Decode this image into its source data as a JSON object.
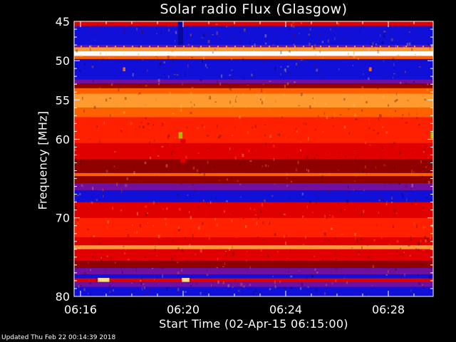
{
  "window": {
    "footer": "Updated Thu Feb 22 00:14:39 2018"
  },
  "chart_data": {
    "type": "heatmap",
    "title": "Solar radio Flux (Glasgow)",
    "xlabel": "Start Time (02-Apr-15 06:15:00)",
    "ylabel": "Frequency [MHz]",
    "x_unit": "minutes since 06:15:00",
    "xlim": [
      0.75,
      14.75
    ],
    "ylim": [
      80,
      45
    ],
    "x_ticks": [
      {
        "value": 1,
        "label": "06:16"
      },
      {
        "value": 5,
        "label": "06:20"
      },
      {
        "value": 9,
        "label": "06:24"
      },
      {
        "value": 13,
        "label": "06:28"
      }
    ],
    "y_ticks": [
      {
        "value": 45,
        "label": "45"
      },
      {
        "value": 50,
        "label": "50"
      },
      {
        "value": 55,
        "label": "55"
      },
      {
        "value": 60,
        "label": "60"
      },
      {
        "value": 70,
        "label": "70"
      },
      {
        "value": 80,
        "label": "80"
      }
    ],
    "colors": {
      "blue": "#1010d8",
      "deep_blue": "#0808a0",
      "purple": "#7010a0",
      "dark_red": "#900000",
      "red": "#e00000",
      "bright_red": "#ff2000",
      "orange": "#ff6000",
      "light_orange": "#ff9a30",
      "yellow": "#ffe080",
      "white": "#ffffff",
      "green": "#a0c000"
    },
    "bands": [
      {
        "f0": 44.6,
        "f1": 45.0,
        "color": "deep_blue"
      },
      {
        "f0": 45.0,
        "f1": 45.6,
        "color": "red"
      },
      {
        "f0": 45.6,
        "f1": 48.0,
        "color": "blue"
      },
      {
        "f0": 48.0,
        "f1": 48.3,
        "color": "purple"
      },
      {
        "f0": 48.3,
        "f1": 48.8,
        "color": "light_orange"
      },
      {
        "f0": 48.8,
        "f1": 49.4,
        "color": "white"
      },
      {
        "f0": 49.4,
        "f1": 49.8,
        "color": "orange"
      },
      {
        "f0": 49.8,
        "f1": 52.4,
        "color": "blue"
      },
      {
        "f0": 52.4,
        "f1": 52.9,
        "color": "purple"
      },
      {
        "f0": 52.9,
        "f1": 53.5,
        "color": "dark_red"
      },
      {
        "f0": 53.5,
        "f1": 54.2,
        "color": "orange"
      },
      {
        "f0": 54.2,
        "f1": 56.0,
        "color": "light_orange"
      },
      {
        "f0": 56.0,
        "f1": 57.2,
        "color": "orange"
      },
      {
        "f0": 57.2,
        "f1": 60.5,
        "color": "bright_red"
      },
      {
        "f0": 60.5,
        "f1": 62.5,
        "color": "red"
      },
      {
        "f0": 62.5,
        "f1": 64.3,
        "color": "dark_red"
      },
      {
        "f0": 64.3,
        "f1": 64.7,
        "color": "orange"
      },
      {
        "f0": 64.7,
        "f1": 65.6,
        "color": "dark_red"
      },
      {
        "f0": 65.6,
        "f1": 66.5,
        "color": "purple"
      },
      {
        "f0": 66.5,
        "f1": 68.0,
        "color": "blue"
      },
      {
        "f0": 68.0,
        "f1": 70.0,
        "color": "red"
      },
      {
        "f0": 70.0,
        "f1": 72.5,
        "color": "bright_red"
      },
      {
        "f0": 72.5,
        "f1": 73.5,
        "color": "red"
      },
      {
        "f0": 73.5,
        "f1": 74.0,
        "color": "light_orange"
      },
      {
        "f0": 74.0,
        "f1": 75.5,
        "color": "red"
      },
      {
        "f0": 75.5,
        "f1": 76.4,
        "color": "dark_red"
      },
      {
        "f0": 76.4,
        "f1": 77.2,
        "color": "purple"
      },
      {
        "f0": 77.2,
        "f1": 77.7,
        "color": "blue"
      },
      {
        "f0": 77.7,
        "f1": 78.2,
        "color": "red"
      },
      {
        "f0": 78.2,
        "f1": 78.8,
        "color": "purple"
      },
      {
        "f0": 78.8,
        "f1": 80.2,
        "color": "blue"
      }
    ],
    "features": [
      {
        "t": 2.7,
        "f": 51.1,
        "dt": 0.1,
        "df": 0.5,
        "color": "orange"
      },
      {
        "t": 12.3,
        "f": 51.1,
        "dt": 0.1,
        "df": 0.5,
        "color": "orange"
      },
      {
        "t": 4.9,
        "f": 59.5,
        "dt": 0.15,
        "df": 0.8,
        "color": "green"
      },
      {
        "t": 14.7,
        "f": 59.5,
        "dt": 0.1,
        "df": 0.8,
        "color": "green"
      },
      {
        "t": 1.9,
        "f": 77.9,
        "dt": 0.45,
        "df": 0.5,
        "color": "yellow"
      },
      {
        "t": 5.1,
        "f": 77.9,
        "dt": 0.3,
        "df": 0.5,
        "color": "yellow"
      },
      {
        "t": 5.0,
        "f": 61.5,
        "dt": 0.2,
        "df": 3.0,
        "color": "red"
      },
      {
        "t": 4.9,
        "f": 46.5,
        "dt": 0.2,
        "df": 3.0,
        "color": "deep_blue"
      }
    ]
  }
}
